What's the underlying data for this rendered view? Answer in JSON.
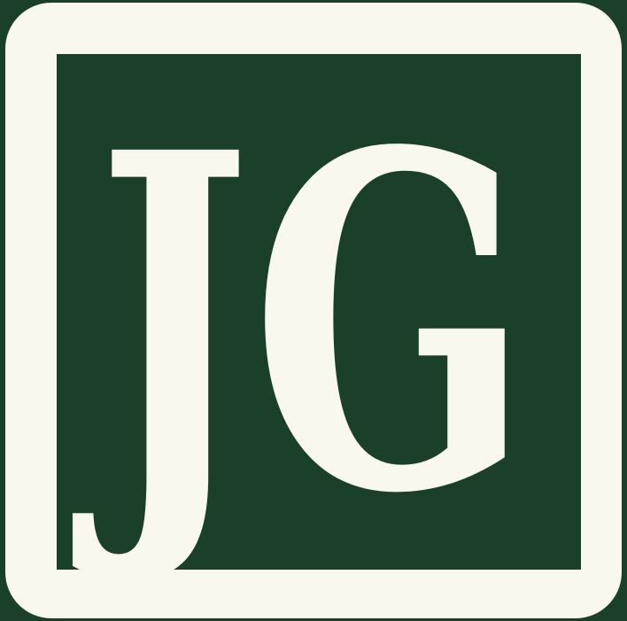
{
  "logo": {
    "monogram": "JG"
  },
  "colors": {
    "background": "#1a4029",
    "frame": "#f8f8ec",
    "panel": "#1a4029",
    "letters": "#f8f8ec"
  }
}
